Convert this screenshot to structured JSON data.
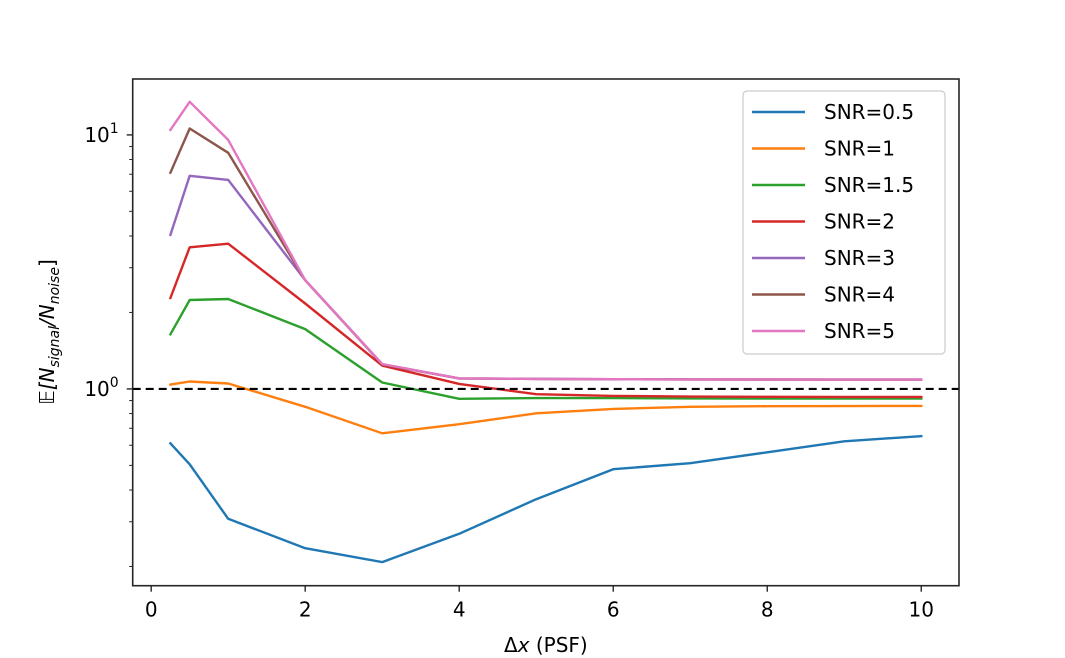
{
  "chart_data": {
    "type": "line",
    "title": "",
    "xlabel": "Δx (PSF)",
    "ylabel": "𝔼[N_signal/N_noise]",
    "ylabel_parts": {
      "prefix": "𝔼[N",
      "sub1": "signal",
      "mid": "/N",
      "sub2": "noise",
      "suffix": "]"
    },
    "xscale": "linear",
    "yscale": "log",
    "xlim": [
      -0.24,
      10.49
    ],
    "ylim": [
      0.168,
      16.6
    ],
    "xticks": [
      0,
      2,
      4,
      6,
      8,
      10
    ],
    "xtick_labels": [
      "0",
      "2",
      "4",
      "6",
      "8",
      "10"
    ],
    "yticks": [
      1,
      10
    ],
    "ytick_labels": [
      {
        "base": "10",
        "exp": "0"
      },
      {
        "base": "10",
        "exp": "1"
      }
    ],
    "grid": false,
    "legend_position": "upper-right",
    "reference_line": {
      "y": 1.0,
      "style": "dashed",
      "color": "#000000"
    },
    "x": [
      0.25,
      0.5,
      1,
      2,
      3,
      4,
      5,
      6,
      7,
      8,
      9,
      10
    ],
    "series": [
      {
        "name": "SNR=0.5",
        "color": "#1f77b4",
        "values": [
          0.611,
          0.505,
          0.308,
          0.236,
          0.208,
          0.269,
          0.368,
          0.483,
          0.51,
          0.563,
          0.622,
          0.652
        ]
      },
      {
        "name": "SNR=1",
        "color": "#ff7f0e",
        "values": [
          1.04,
          1.07,
          1.05,
          0.85,
          0.669,
          0.726,
          0.802,
          0.834,
          0.85,
          0.855,
          0.856,
          0.857
        ]
      },
      {
        "name": "SNR=1.5",
        "color": "#2ca02c",
        "values": [
          1.64,
          2.24,
          2.26,
          1.72,
          1.06,
          0.914,
          0.92,
          0.92,
          0.918,
          0.917,
          0.916,
          0.916
        ]
      },
      {
        "name": "SNR=2",
        "color": "#d62728",
        "values": [
          2.28,
          3.61,
          3.73,
          2.17,
          1.235,
          1.047,
          0.953,
          0.939,
          0.933,
          0.931,
          0.93,
          0.93
        ]
      },
      {
        "name": "SNR=3",
        "color": "#9467bd",
        "values": [
          4.04,
          6.9,
          6.65,
          2.68,
          1.25,
          1.1,
          1.095,
          1.092,
          1.09,
          1.089,
          1.088,
          1.088
        ]
      },
      {
        "name": "SNR=4",
        "color": "#8c564b",
        "values": [
          7.1,
          10.6,
          8.5,
          2.68,
          1.25,
          1.1,
          1.095,
          1.092,
          1.09,
          1.089,
          1.088,
          1.088
        ]
      },
      {
        "name": "SNR=5",
        "color": "#e377c2",
        "values": [
          10.46,
          13.5,
          9.56,
          2.68,
          1.254,
          1.1,
          1.095,
          1.092,
          1.09,
          1.089,
          1.088,
          1.088
        ]
      }
    ]
  }
}
